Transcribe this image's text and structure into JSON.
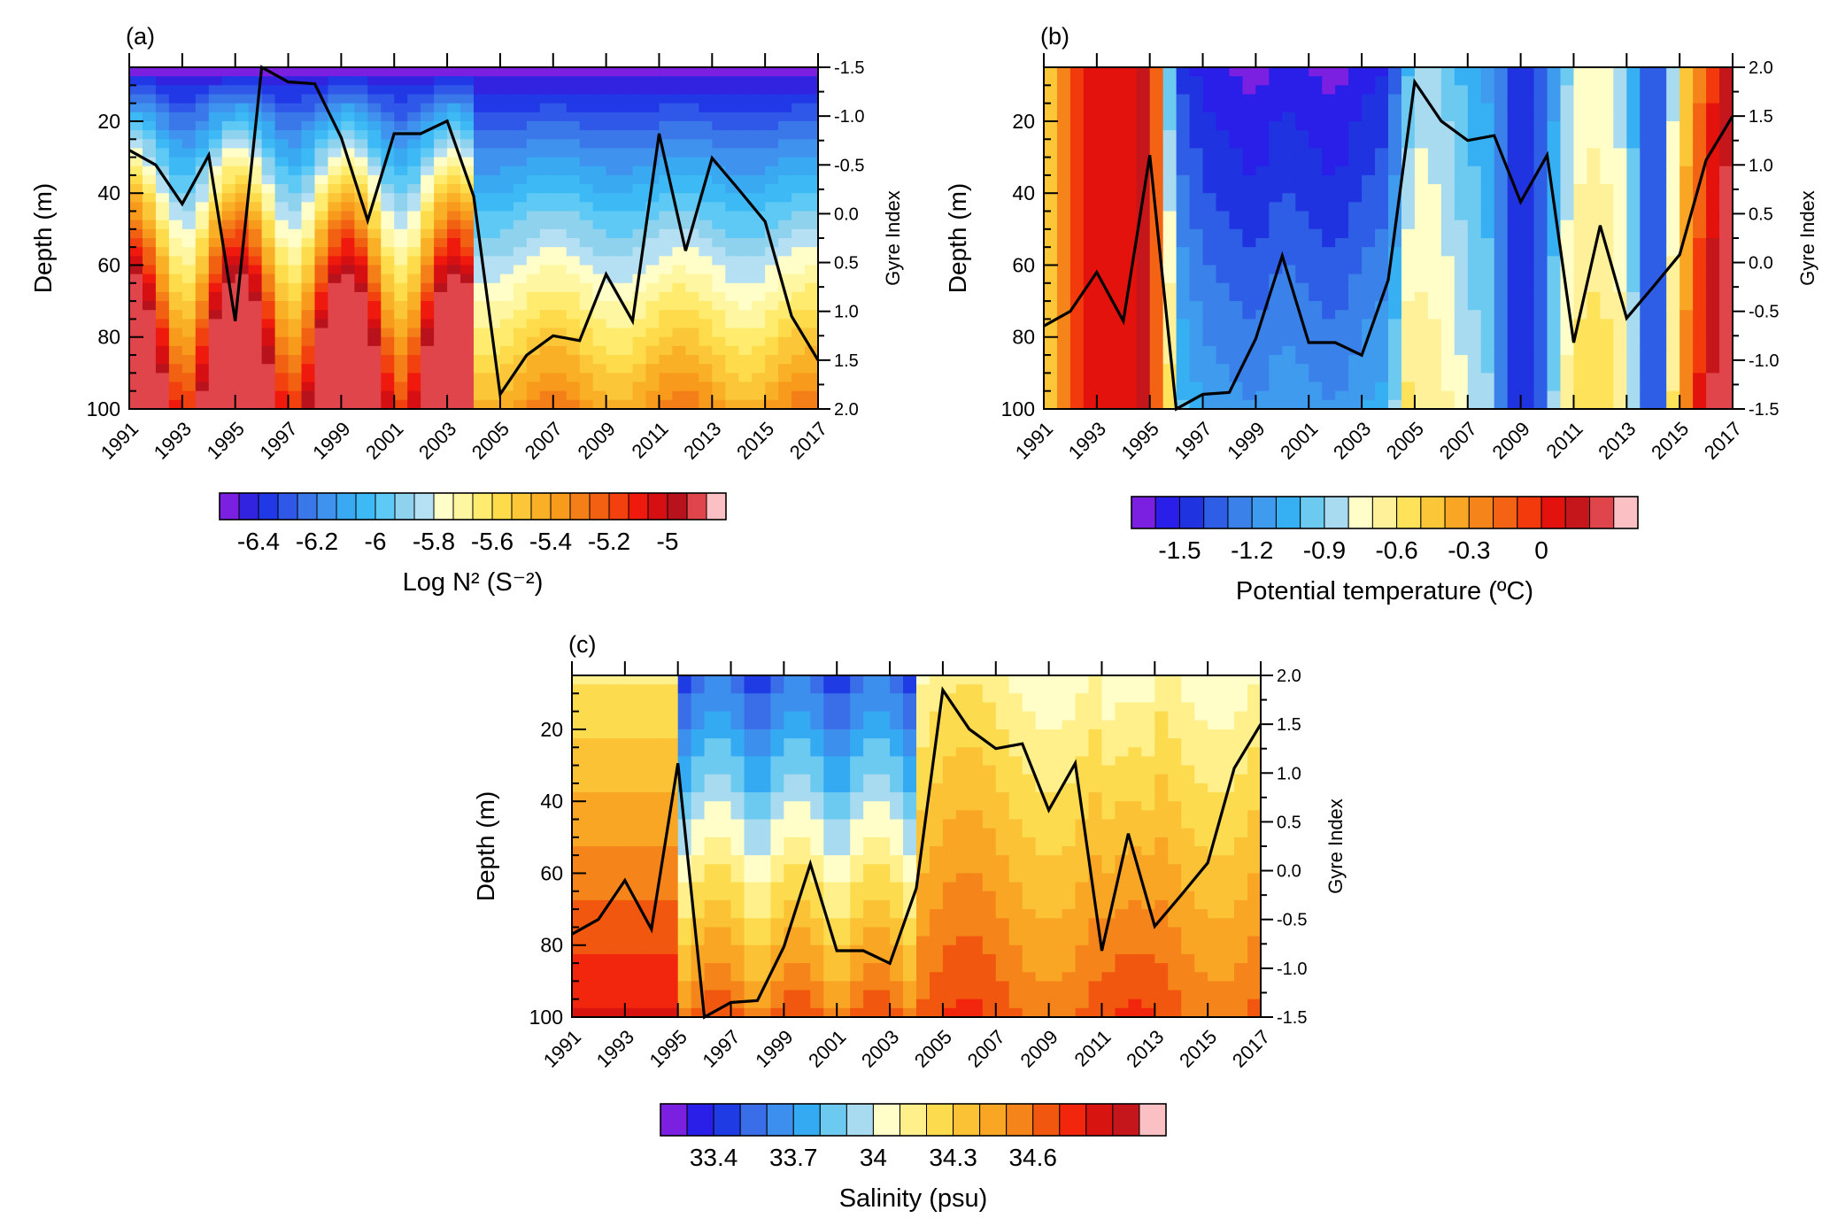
{
  "chart_data": [
    {
      "id": "a",
      "panel_label": "(a)",
      "type": "contour",
      "ylabel": "Depth (m)",
      "y2label": "Gyre Index",
      "colorbar_label": "Log N² (S⁻²)",
      "x_ticks": [
        "1991",
        "1993",
        "1995",
        "1997",
        "1999",
        "2001",
        "2003",
        "2005",
        "2007",
        "2009",
        "2011",
        "2013",
        "2015",
        "2017"
      ],
      "xlim": [
        1991,
        2017
      ],
      "ylim": [
        5,
        100
      ],
      "y_ticks": [
        "20",
        "40",
        "60",
        "80",
        "100"
      ],
      "y2lim": [
        -1.5,
        2.0
      ],
      "y2_ticks": [
        "-1.5",
        "-1.0",
        "-0.5",
        "0.0",
        "0.5",
        "1.0",
        "1.5",
        "2.0"
      ],
      "y2_inverted": true,
      "colorbar_colors": [
        "#7b1fe0",
        "#3223e0",
        "#2038e6",
        "#2f58e8",
        "#3a78ea",
        "#3f93ee",
        "#39a9f2",
        "#3dbaf5",
        "#5ec9f5",
        "#8ed2ee",
        "#b5e0f3",
        "#fffdc8",
        "#fff6a2",
        "#ffeb6e",
        "#fddb4a",
        "#fbc638",
        "#f9af26",
        "#f89a1c",
        "#f47e17",
        "#f26012",
        "#f2400e",
        "#ef1a0d",
        "#d60f12",
        "#b8131c",
        "#e0454c",
        "#fbc0c4"
      ],
      "colorbar_ticks": [
        "-6.4",
        "-6.2",
        "-6",
        "-5.8",
        "-5.6",
        "-5.4",
        "-5.2",
        "-5"
      ],
      "colorbar_tick_boxes": [
        2,
        5,
        8,
        11,
        14,
        17,
        20,
        23
      ],
      "gyre_index": [
        [
          1991,
          -0.65
        ],
        [
          1992,
          -0.5
        ],
        [
          1993,
          -0.1
        ],
        [
          1994,
          -0.6
        ],
        [
          1995,
          1.1
        ],
        [
          1996,
          -1.5
        ],
        [
          1997,
          -1.35
        ],
        [
          1998,
          -1.33
        ],
        [
          1999,
          -0.78
        ],
        [
          2000,
          0.07
        ],
        [
          2001,
          -0.82
        ],
        [
          2002,
          -0.82
        ],
        [
          2003,
          -0.95
        ],
        [
          2004,
          -0.18
        ],
        [
          2005,
          1.85
        ],
        [
          2006,
          1.45
        ],
        [
          2007,
          1.25
        ],
        [
          2008,
          1.3
        ],
        [
          2009,
          0.62
        ],
        [
          2010,
          1.1
        ],
        [
          2011,
          -0.82
        ],
        [
          2012,
          0.38
        ],
        [
          2013,
          -0.57
        ],
        [
          2014,
          -0.25
        ],
        [
          2015,
          0.08
        ],
        [
          2016,
          1.05
        ],
        [
          2017,
          1.5
        ]
      ]
    },
    {
      "id": "b",
      "panel_label": "(b)",
      "type": "contour",
      "ylabel": "Depth (m)",
      "y2label": "Gyre Index",
      "colorbar_label": "Potential temperature (ºC)",
      "x_ticks": [
        "1991",
        "1993",
        "1995",
        "1997",
        "1999",
        "2001",
        "2003",
        "2005",
        "2007",
        "2009",
        "2011",
        "2013",
        "2015",
        "2017"
      ],
      "xlim": [
        1991,
        2017
      ],
      "ylim": [
        5,
        100
      ],
      "y_ticks": [
        "20",
        "40",
        "60",
        "80",
        "100"
      ],
      "y2lim": [
        -1.5,
        2.0
      ],
      "y2_ticks": [
        "-1.5",
        "-1.0",
        "-0.5",
        "0.0",
        "0.5",
        "1.0",
        "1.5",
        "2.0"
      ],
      "y2_inverted": false,
      "colorbar_colors": [
        "#7b1fe0",
        "#2a1fe8",
        "#1f33e0",
        "#2f5ee6",
        "#3a82ea",
        "#3f9bee",
        "#37b0f3",
        "#6ccaf1",
        "#a8daf0",
        "#fffdc8",
        "#fff19a",
        "#fde25a",
        "#fbc638",
        "#f8a623",
        "#f5851a",
        "#f36313",
        "#f23a0d",
        "#e4120d",
        "#c4161b",
        "#e0454c",
        "#fbc0c4"
      ],
      "colorbar_ticks": [
        "-1.5",
        "-1.2",
        "-0.9",
        "-0.6",
        "-0.3",
        "0"
      ],
      "colorbar_tick_boxes": [
        2,
        5,
        8,
        11,
        14,
        17
      ],
      "gyre_index": [
        [
          1991,
          -0.65
        ],
        [
          1992,
          -0.5
        ],
        [
          1993,
          -0.1
        ],
        [
          1994,
          -0.6
        ],
        [
          1995,
          1.1
        ],
        [
          1996,
          -1.5
        ],
        [
          1997,
          -1.35
        ],
        [
          1998,
          -1.33
        ],
        [
          1999,
          -0.78
        ],
        [
          2000,
          0.07
        ],
        [
          2001,
          -0.82
        ],
        [
          2002,
          -0.82
        ],
        [
          2003,
          -0.95
        ],
        [
          2004,
          -0.18
        ],
        [
          2005,
          1.85
        ],
        [
          2006,
          1.45
        ],
        [
          2007,
          1.25
        ],
        [
          2008,
          1.3
        ],
        [
          2009,
          0.62
        ],
        [
          2010,
          1.1
        ],
        [
          2011,
          -0.82
        ],
        [
          2012,
          0.38
        ],
        [
          2013,
          -0.57
        ],
        [
          2014,
          -0.25
        ],
        [
          2015,
          0.08
        ],
        [
          2016,
          1.05
        ],
        [
          2017,
          1.5
        ]
      ]
    },
    {
      "id": "c",
      "panel_label": "(c)",
      "type": "contour",
      "ylabel": "Depth (m)",
      "y2label": "Gyre Index",
      "colorbar_label": "Salinity (psu)",
      "x_ticks": [
        "1991",
        "1993",
        "1995",
        "1997",
        "1999",
        "2001",
        "2003",
        "2005",
        "2007",
        "2009",
        "2011",
        "2013",
        "2015",
        "2017"
      ],
      "xlim": [
        1991,
        2017
      ],
      "ylim": [
        5,
        100
      ],
      "y_ticks": [
        "20",
        "40",
        "60",
        "80",
        "100"
      ],
      "y2lim": [
        -1.5,
        2.0
      ],
      "y2_ticks": [
        "-1.5",
        "-1.0",
        "-0.5",
        "0.0",
        "0.5",
        "1.0",
        "1.5",
        "2.0"
      ],
      "y2_inverted": false,
      "colorbar_colors": [
        "#7b1fe0",
        "#2a1fe8",
        "#1f3ce4",
        "#3a6ee8",
        "#3d8fee",
        "#34aaf2",
        "#6ccaf1",
        "#a8daf0",
        "#fffdc8",
        "#fff08c",
        "#fcdb4e",
        "#fbc236",
        "#f8a623",
        "#f5851a",
        "#f2570f",
        "#f2260d",
        "#d81410",
        "#c4161b",
        "#fbc0c4"
      ],
      "colorbar_ticks": [
        "33.4",
        "33.7",
        "34",
        "34.3",
        "34.6"
      ],
      "colorbar_tick_boxes": [
        2,
        5,
        8,
        11,
        14
      ],
      "gyre_index": [
        [
          1991,
          -0.65
        ],
        [
          1992,
          -0.5
        ],
        [
          1993,
          -0.1
        ],
        [
          1994,
          -0.6
        ],
        [
          1995,
          1.1
        ],
        [
          1996,
          -1.5
        ],
        [
          1997,
          -1.35
        ],
        [
          1998,
          -1.33
        ],
        [
          1999,
          -0.78
        ],
        [
          2000,
          0.07
        ],
        [
          2001,
          -0.82
        ],
        [
          2002,
          -0.82
        ],
        [
          2003,
          -0.95
        ],
        [
          2004,
          -0.18
        ],
        [
          2005,
          1.85
        ],
        [
          2006,
          1.45
        ],
        [
          2007,
          1.25
        ],
        [
          2008,
          1.3
        ],
        [
          2009,
          0.62
        ],
        [
          2010,
          1.1
        ],
        [
          2011,
          -0.82
        ],
        [
          2012,
          0.38
        ],
        [
          2013,
          -0.57
        ],
        [
          2014,
          -0.25
        ],
        [
          2015,
          0.08
        ],
        [
          2016,
          1.05
        ],
        [
          2017,
          1.5
        ]
      ]
    }
  ]
}
